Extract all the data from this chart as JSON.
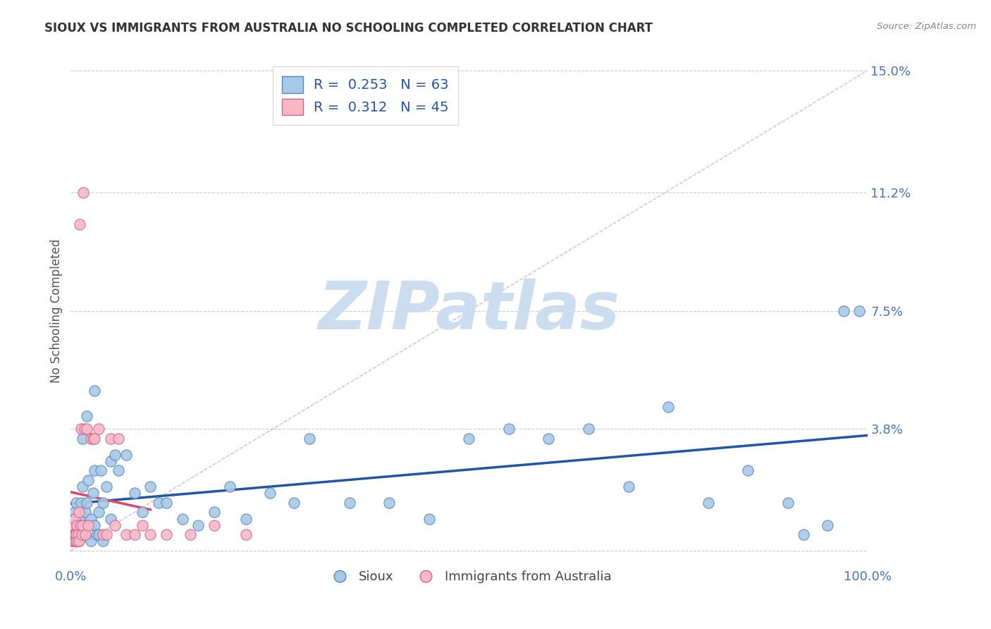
{
  "title": "SIOUX VS IMMIGRANTS FROM AUSTRALIA NO SCHOOLING COMPLETED CORRELATION CHART",
  "source": "Source: ZipAtlas.com",
  "ylabel": "No Schooling Completed",
  "xlim": [
    0.0,
    100.0
  ],
  "ylim": [
    -0.5,
    15.5
  ],
  "yticks": [
    0.0,
    3.8,
    7.5,
    11.2,
    15.0
  ],
  "ytick_labels": [
    "",
    "3.8%",
    "7.5%",
    "11.2%",
    "15.0%"
  ],
  "xtick_labels": [
    "0.0%",
    "100.0%"
  ],
  "xticks": [
    0.0,
    100.0
  ],
  "sioux_x": [
    0.3,
    0.5,
    0.7,
    0.8,
    1.0,
    1.0,
    1.2,
    1.3,
    1.5,
    1.5,
    1.8,
    2.0,
    2.0,
    2.2,
    2.5,
    2.5,
    2.8,
    3.0,
    3.0,
    3.2,
    3.5,
    3.5,
    3.8,
    4.0,
    4.0,
    4.5,
    5.0,
    5.0,
    5.5,
    6.0,
    7.0,
    8.0,
    9.0,
    10.0,
    11.0,
    12.0,
    14.0,
    16.0,
    18.0,
    20.0,
    22.0,
    25.0,
    28.0,
    30.0,
    35.0,
    40.0,
    45.0,
    50.0,
    55.0,
    60.0,
    65.0,
    70.0,
    75.0,
    80.0,
    85.0,
    90.0,
    92.0,
    95.0,
    97.0,
    99.0,
    1.5,
    2.0,
    3.0
  ],
  "sioux_y": [
    0.8,
    1.2,
    1.5,
    0.5,
    1.0,
    0.3,
    0.8,
    1.5,
    2.0,
    0.5,
    1.2,
    1.5,
    0.8,
    2.2,
    1.0,
    0.3,
    1.8,
    2.5,
    0.8,
    0.5,
    1.2,
    0.5,
    2.5,
    1.5,
    0.3,
    2.0,
    2.8,
    1.0,
    3.0,
    2.5,
    3.0,
    1.8,
    1.2,
    2.0,
    1.5,
    1.5,
    1.0,
    0.8,
    1.2,
    2.0,
    1.0,
    1.8,
    1.5,
    3.5,
    1.5,
    1.5,
    1.0,
    3.5,
    3.8,
    3.5,
    3.8,
    2.0,
    4.5,
    1.5,
    2.5,
    1.5,
    0.5,
    0.8,
    7.5,
    7.5,
    3.5,
    4.2,
    5.0
  ],
  "australia_x": [
    0.1,
    0.1,
    0.2,
    0.2,
    0.3,
    0.3,
    0.4,
    0.4,
    0.5,
    0.5,
    0.6,
    0.6,
    0.7,
    0.8,
    0.8,
    0.9,
    1.0,
    1.0,
    1.1,
    1.2,
    1.3,
    1.4,
    1.5,
    1.6,
    1.7,
    1.8,
    2.0,
    2.2,
    2.5,
    2.8,
    3.0,
    3.5,
    4.0,
    4.5,
    5.0,
    5.5,
    6.0,
    7.0,
    8.0,
    9.0,
    10.0,
    12.0,
    15.0,
    18.0,
    22.0
  ],
  "australia_y": [
    0.3,
    0.5,
    0.5,
    0.8,
    0.3,
    0.5,
    0.3,
    0.5,
    1.0,
    0.5,
    0.5,
    0.3,
    0.5,
    0.8,
    0.3,
    0.5,
    1.2,
    0.3,
    10.2,
    0.8,
    3.8,
    0.5,
    0.8,
    11.2,
    3.8,
    0.5,
    3.8,
    0.8,
    3.5,
    3.5,
    3.5,
    3.8,
    0.5,
    0.5,
    3.5,
    0.8,
    3.5,
    0.5,
    0.5,
    0.8,
    0.5,
    0.5,
    0.5,
    0.8,
    0.5
  ],
  "sioux_color": "#a8c8e8",
  "sioux_edge": "#5588bb",
  "sioux_trend_color": "#2255aa",
  "australia_color": "#f8b8c8",
  "australia_edge": "#cc6688",
  "australia_trend_color": "#dd4466",
  "australia_diag_color": "#f0b0c0",
  "grid_color": "#cccccc",
  "background_color": "#ffffff",
  "title_color": "#333333",
  "source_color": "#888888",
  "ylabel_color": "#555555",
  "tick_color": "#4477bb",
  "watermark_text": "ZIPatlas",
  "watermark_color": "#ccddf0",
  "legend_text_color": "#2255aa",
  "legend_border_color": "#cccccc"
}
